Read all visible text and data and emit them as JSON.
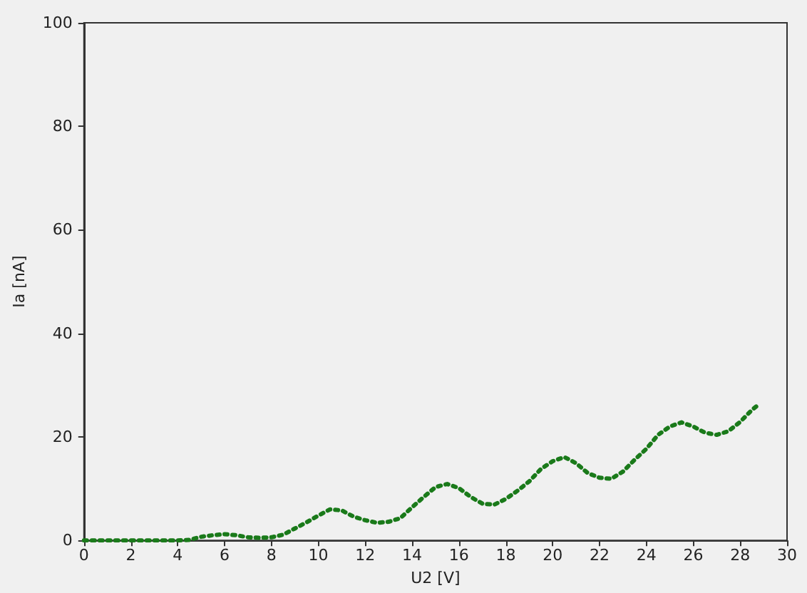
{
  "chart_data": {
    "type": "line",
    "xlabel": "U2 [V]",
    "ylabel": "Ia [nA]",
    "x": [
      0,
      0.5,
      1,
      1.5,
      2,
      2.5,
      3,
      3.5,
      4,
      4.5,
      5,
      5.5,
      6,
      6.5,
      7,
      7.5,
      8,
      8.5,
      9,
      9.5,
      10,
      10.5,
      11,
      11.5,
      12,
      12.5,
      13,
      13.5,
      14,
      14.5,
      15,
      15.5,
      16,
      16.5,
      17,
      17.5,
      18,
      18.5,
      19,
      19.5,
      20,
      20.5,
      21,
      21.5,
      22,
      22.5,
      23,
      23.5,
      24,
      24.5,
      25,
      25.5,
      26,
      26.5,
      27,
      27.5,
      28,
      28.5,
      28.8
    ],
    "series": [
      {
        "color": "#1a7a1a",
        "values": [
          0,
          0,
          0,
          0,
          0,
          0,
          0,
          0,
          0,
          0.1,
          0.7,
          1.0,
          1.2,
          1.0,
          0.6,
          0.5,
          0.6,
          1.1,
          2.3,
          3.5,
          4.8,
          6.0,
          5.8,
          4.6,
          3.9,
          3.4,
          3.6,
          4.3,
          6.4,
          8.4,
          10.3,
          10.9,
          10.1,
          8.4,
          7.1,
          6.9,
          8.0,
          9.6,
          11.4,
          13.8,
          15.3,
          16.1,
          14.9,
          13.0,
          12.1,
          11.9,
          13.3,
          15.6,
          17.7,
          20.4,
          22.0,
          22.8,
          22.0,
          20.8,
          20.4,
          21.1,
          22.9,
          25.2,
          26.3
        ]
      }
    ],
    "xlim": [
      0,
      30
    ],
    "xticks": [
      0,
      2,
      4,
      6,
      8,
      10,
      12,
      14,
      16,
      18,
      20,
      22,
      24,
      26,
      28,
      30
    ],
    "ylim": [
      0,
      100
    ],
    "yticks": [
      0,
      20,
      40,
      60,
      80,
      100
    ],
    "grid": false,
    "marker": "none",
    "line_style": "dotted"
  }
}
